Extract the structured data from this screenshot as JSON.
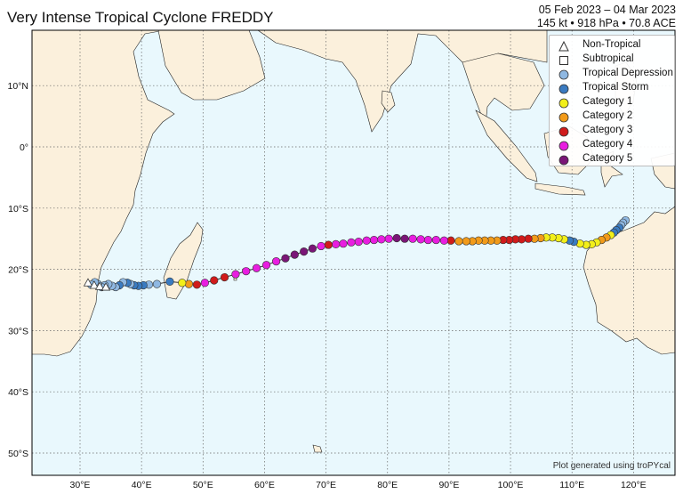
{
  "title": "Very Intense Tropical Cyclone FREDDY",
  "header": {
    "date_range": "05 Feb 2023 – 04 Mar 2023",
    "stats": "145 kt • 918 hPa • 70.8 ACE"
  },
  "map": {
    "ocean_color": "#e9f8fd",
    "land_color": "#fbf0dc",
    "lon_labels": [
      "30°E",
      "40°E",
      "50°E",
      "60°E",
      "70°E",
      "80°E",
      "90°E",
      "100°E",
      "110°E",
      "120°E"
    ],
    "lat_labels": [
      "10°N",
      "0°",
      "10°S",
      "20°S",
      "30°S",
      "40°S",
      "50°S"
    ]
  },
  "legend": {
    "items": [
      {
        "label": "Non-Tropical",
        "symbol": "triangle",
        "color": "#ffffff"
      },
      {
        "label": "Subtropical",
        "symbol": "square",
        "color": "#ffffff"
      },
      {
        "label": "Tropical Depression",
        "symbol": "circle",
        "color": "#8fb8e2"
      },
      {
        "label": "Tropical Storm",
        "symbol": "circle",
        "color": "#3a7bc1"
      },
      {
        "label": "Category 1",
        "symbol": "circle",
        "color": "#f2ef1a"
      },
      {
        "label": "Category 2",
        "symbol": "circle",
        "color": "#f29b1a"
      },
      {
        "label": "Category 3",
        "symbol": "circle",
        "color": "#d01b1b"
      },
      {
        "label": "Category 4",
        "symbol": "circle",
        "color": "#e81ee0"
      },
      {
        "label": "Category 5",
        "symbol": "circle",
        "color": "#7a1677"
      }
    ]
  },
  "credit": "Plot generated using troPYcal",
  "chart_data": {
    "type": "scatter",
    "track": [
      {
        "lon": 118.7,
        "lat": -12.0,
        "cat": "td"
      },
      {
        "lon": 118.3,
        "lat": -12.4,
        "cat": "td"
      },
      {
        "lon": 118.0,
        "lat": -12.8,
        "cat": "td"
      },
      {
        "lon": 117.7,
        "lat": -13.2,
        "cat": "ts"
      },
      {
        "lon": 117.2,
        "lat": -13.6,
        "cat": "ts"
      },
      {
        "lon": 116.8,
        "lat": -14.0,
        "cat": "ts"
      },
      {
        "lon": 116.3,
        "lat": -14.4,
        "cat": "c1"
      },
      {
        "lon": 115.6,
        "lat": -14.8,
        "cat": "c2"
      },
      {
        "lon": 114.8,
        "lat": -15.2,
        "cat": "c2"
      },
      {
        "lon": 114.0,
        "lat": -15.6,
        "cat": "c1"
      },
      {
        "lon": 113.2,
        "lat": -15.9,
        "cat": "c1"
      },
      {
        "lon": 112.3,
        "lat": -16.0,
        "cat": "c1"
      },
      {
        "lon": 111.3,
        "lat": -15.8,
        "cat": "c1"
      },
      {
        "lon": 110.3,
        "lat": -15.5,
        "cat": "ts"
      },
      {
        "lon": 109.6,
        "lat": -15.3,
        "cat": "ts"
      },
      {
        "lon": 108.7,
        "lat": -15.1,
        "cat": "c1"
      },
      {
        "lon": 107.8,
        "lat": -14.9,
        "cat": "c1"
      },
      {
        "lon": 106.8,
        "lat": -14.8,
        "cat": "c1"
      },
      {
        "lon": 105.8,
        "lat": -14.8,
        "cat": "c1"
      },
      {
        "lon": 104.9,
        "lat": -14.9,
        "cat": "c2"
      },
      {
        "lon": 103.9,
        "lat": -15.0,
        "cat": "c2"
      },
      {
        "lon": 102.9,
        "lat": -15.0,
        "cat": "c3"
      },
      {
        "lon": 101.8,
        "lat": -15.1,
        "cat": "c3"
      },
      {
        "lon": 100.8,
        "lat": -15.1,
        "cat": "c3"
      },
      {
        "lon": 99.8,
        "lat": -15.2,
        "cat": "c3"
      },
      {
        "lon": 98.8,
        "lat": -15.2,
        "cat": "c3"
      },
      {
        "lon": 97.8,
        "lat": -15.3,
        "cat": "c2"
      },
      {
        "lon": 96.8,
        "lat": -15.3,
        "cat": "c2"
      },
      {
        "lon": 95.8,
        "lat": -15.3,
        "cat": "c2"
      },
      {
        "lon": 94.8,
        "lat": -15.3,
        "cat": "c2"
      },
      {
        "lon": 93.8,
        "lat": -15.4,
        "cat": "c2"
      },
      {
        "lon": 92.8,
        "lat": -15.4,
        "cat": "c2"
      },
      {
        "lon": 91.6,
        "lat": -15.4,
        "cat": "c2"
      },
      {
        "lon": 90.3,
        "lat": -15.3,
        "cat": "c3"
      },
      {
        "lon": 89.2,
        "lat": -15.3,
        "cat": "c4"
      },
      {
        "lon": 87.9,
        "lat": -15.2,
        "cat": "c4"
      },
      {
        "lon": 86.6,
        "lat": -15.2,
        "cat": "c4"
      },
      {
        "lon": 85.4,
        "lat": -15.1,
        "cat": "c4"
      },
      {
        "lon": 84.1,
        "lat": -15.0,
        "cat": "c4"
      },
      {
        "lon": 82.8,
        "lat": -15.0,
        "cat": "c5"
      },
      {
        "lon": 81.5,
        "lat": -14.9,
        "cat": "c5"
      },
      {
        "lon": 80.2,
        "lat": -15.0,
        "cat": "c4"
      },
      {
        "lon": 79.0,
        "lat": -15.1,
        "cat": "c4"
      },
      {
        "lon": 77.8,
        "lat": -15.2,
        "cat": "c4"
      },
      {
        "lon": 76.6,
        "lat": -15.3,
        "cat": "c4"
      },
      {
        "lon": 75.3,
        "lat": -15.5,
        "cat": "c4"
      },
      {
        "lon": 74.1,
        "lat": -15.6,
        "cat": "c4"
      },
      {
        "lon": 72.8,
        "lat": -15.8,
        "cat": "c4"
      },
      {
        "lon": 71.6,
        "lat": -15.9,
        "cat": "c4"
      },
      {
        "lon": 70.4,
        "lat": -16.0,
        "cat": "c3"
      },
      {
        "lon": 69.2,
        "lat": -16.2,
        "cat": "c4"
      },
      {
        "lon": 67.8,
        "lat": -16.6,
        "cat": "c5"
      },
      {
        "lon": 66.4,
        "lat": -17.1,
        "cat": "c5"
      },
      {
        "lon": 64.9,
        "lat": -17.6,
        "cat": "c5"
      },
      {
        "lon": 63.4,
        "lat": -18.2,
        "cat": "c5"
      },
      {
        "lon": 61.9,
        "lat": -18.7,
        "cat": "c4"
      },
      {
        "lon": 60.3,
        "lat": -19.3,
        "cat": "c4"
      },
      {
        "lon": 58.7,
        "lat": -19.8,
        "cat": "c4"
      },
      {
        "lon": 57.0,
        "lat": -20.3,
        "cat": "c4"
      },
      {
        "lon": 55.3,
        "lat": -20.8,
        "cat": "c4"
      },
      {
        "lon": 53.5,
        "lat": -21.3,
        "cat": "c3"
      },
      {
        "lon": 51.8,
        "lat": -21.8,
        "cat": "c3"
      },
      {
        "lon": 50.3,
        "lat": -22.2,
        "cat": "c4"
      },
      {
        "lon": 49.0,
        "lat": -22.5,
        "cat": "c3"
      },
      {
        "lon": 47.7,
        "lat": -22.4,
        "cat": "c2"
      },
      {
        "lon": 46.6,
        "lat": -22.2,
        "cat": "c1"
      },
      {
        "lon": 44.6,
        "lat": -22.0,
        "cat": "ts"
      },
      {
        "lon": 42.5,
        "lat": -22.4,
        "cat": "td"
      },
      {
        "lon": 41.2,
        "lat": -22.5,
        "cat": "td"
      },
      {
        "lon": 40.3,
        "lat": -22.6,
        "cat": "ts"
      },
      {
        "lon": 39.5,
        "lat": -22.7,
        "cat": "ts"
      },
      {
        "lon": 38.8,
        "lat": -22.6,
        "cat": "ts"
      },
      {
        "lon": 38.2,
        "lat": -22.4,
        "cat": "td"
      },
      {
        "lon": 37.7,
        "lat": -22.2,
        "cat": "ts"
      },
      {
        "lon": 37.0,
        "lat": -22.1,
        "cat": "td"
      },
      {
        "lon": 36.4,
        "lat": -22.6,
        "cat": "ts"
      },
      {
        "lon": 35.8,
        "lat": -22.9,
        "cat": "td"
      },
      {
        "lon": 35.2,
        "lat": -22.7,
        "cat": "td"
      },
      {
        "lon": 34.6,
        "lat": -22.4,
        "cat": "td"
      },
      {
        "lon": 34.0,
        "lat": -22.6,
        "cat": "td"
      },
      {
        "lon": 33.5,
        "lat": -22.9,
        "cat": "td"
      },
      {
        "lon": 32.9,
        "lat": -22.4,
        "cat": "td"
      },
      {
        "lon": 32.4,
        "lat": -22.1,
        "cat": "td"
      },
      {
        "lon": 31.8,
        "lat": -22.5,
        "cat": "td"
      },
      {
        "lon": 31.3,
        "lat": -22.2,
        "cat": "nt"
      },
      {
        "lon": 32.3,
        "lat": -22.6,
        "cat": "nt"
      },
      {
        "lon": 33.2,
        "lat": -22.8,
        "cat": "nt"
      },
      {
        "lon": 34.2,
        "lat": -22.9,
        "cat": "nt"
      }
    ]
  }
}
